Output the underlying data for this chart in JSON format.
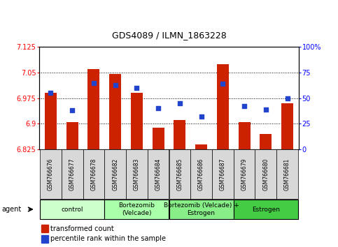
{
  "title": "GDS4089 / ILMN_1863228",
  "samples": [
    "GSM766676",
    "GSM766677",
    "GSM766678",
    "GSM766682",
    "GSM766683",
    "GSM766684",
    "GSM766685",
    "GSM766686",
    "GSM766687",
    "GSM766679",
    "GSM766680",
    "GSM766681"
  ],
  "transformed_count": [
    6.99,
    6.905,
    7.06,
    7.045,
    6.99,
    6.888,
    6.912,
    6.84,
    7.075,
    6.905,
    6.87,
    6.96
  ],
  "percentile_rank": [
    55,
    38,
    65,
    63,
    60,
    40,
    45,
    32,
    64,
    42,
    39,
    50
  ],
  "ylim_left": [
    6.825,
    7.125
  ],
  "ylim_right": [
    0,
    100
  ],
  "yticks_left": [
    6.825,
    6.9,
    6.975,
    7.05,
    7.125
  ],
  "yticks_left_labels": [
    "6.825",
    "6.9",
    "6.975",
    "7.05",
    "7.125"
  ],
  "yticks_right": [
    0,
    25,
    50,
    75,
    100
  ],
  "yticks_right_labels": [
    "0",
    "25",
    "50",
    "75",
    "100%"
  ],
  "bar_color": "#cc2200",
  "dot_color": "#2244cc",
  "bar_bottom": 6.825,
  "groups": [
    {
      "label": "control",
      "start": 0,
      "end": 3,
      "color": "#ccffcc"
    },
    {
      "label": "Bortezomib\n(Velcade)",
      "start": 3,
      "end": 6,
      "color": "#aaffaa"
    },
    {
      "label": "Bortezomib (Velcade) +\nEstrogen",
      "start": 6,
      "end": 9,
      "color": "#88ee88"
    },
    {
      "label": "Estrogen",
      "start": 9,
      "end": 12,
      "color": "#44cc44"
    }
  ],
  "agent_label": "agent",
  "legend_bar_label": "transformed count",
  "legend_dot_label": "percentile rank within the sample",
  "gridline_yticks": [
    6.9,
    6.975,
    7.05
  ]
}
